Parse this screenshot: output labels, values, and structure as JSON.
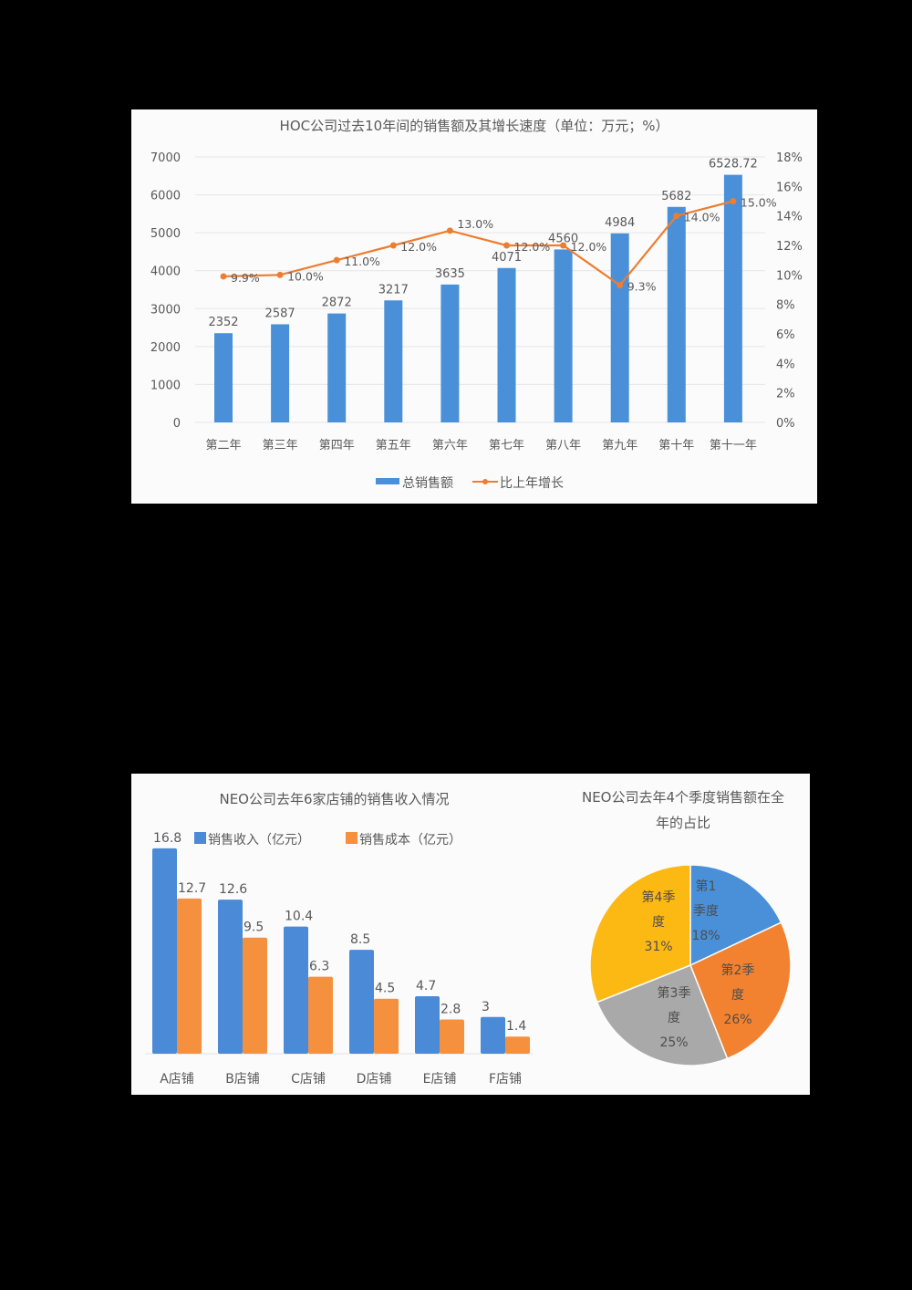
{
  "chart_data": [
    {
      "type": "bar+line",
      "title": "HOC公司过去10年间的销售额及其增长速度（单位：万元；%）",
      "categories": [
        "第二年",
        "第三年",
        "第四年",
        "第五年",
        "第六年",
        "第七年",
        "第八年",
        "第九年",
        "第十年",
        "第十一年"
      ],
      "series": [
        {
          "name": "总销售额",
          "type": "bar",
          "axis": "left",
          "color": "#4a90d9",
          "values": [
            2352,
            2587,
            2872,
            3217,
            3635,
            4071,
            4560,
            4984,
            5682,
            6528.72
          ],
          "labels": [
            "2352",
            "2587",
            "2872",
            "3217",
            "3635",
            "4071",
            "4560",
            "4984",
            "5682",
            "6528.72"
          ]
        },
        {
          "name": "比上年增长",
          "type": "line",
          "axis": "right",
          "color": "#ed7d31",
          "values": [
            9.9,
            10.0,
            11.0,
            12.0,
            13.0,
            12.0,
            12.0,
            9.3,
            14.0,
            15.0
          ],
          "labels": [
            "9.9%",
            "10.0%",
            "11.0%",
            "12.0%",
            "13.0%",
            "12.0%",
            "12.0%",
            "9.3%",
            "14.0%",
            "15.0%"
          ]
        }
      ],
      "y_left": {
        "ticks": [
          "0",
          "1000",
          "2000",
          "3000",
          "4000",
          "5000",
          "6000",
          "7000"
        ],
        "ylim": [
          0,
          7000
        ]
      },
      "y_right": {
        "ticks": [
          "0%",
          "2%",
          "4%",
          "6%",
          "8%",
          "10%",
          "12%",
          "14%",
          "16%",
          "18%"
        ],
        "ylim": [
          0,
          18
        ]
      },
      "grid": true,
      "legend_position": "bottom",
      "xlabel": "",
      "ylabel": ""
    },
    {
      "type": "bar",
      "title": "NEO公司去年6家店铺的销售收入情况",
      "categories": [
        "A店铺",
        "B店铺",
        "C店铺",
        "D店铺",
        "E店铺",
        "F店铺"
      ],
      "series": [
        {
          "name": "销售收入（亿元）",
          "color": "#4a8ad6",
          "values": [
            16.8,
            12.6,
            10.4,
            8.5,
            4.7,
            3
          ],
          "labels": [
            "16.8",
            "12.6",
            "10.4",
            "8.5",
            "4.7",
            "3"
          ]
        },
        {
          "name": "销售成本（亿元）",
          "color": "#f5913e",
          "values": [
            12.7,
            9.5,
            6.3,
            4.5,
            2.8,
            1.4
          ],
          "labels": [
            "12.7",
            "9.5",
            "6.3",
            "4.5",
            "2.8",
            "1.4"
          ]
        }
      ],
      "legend_position": "top",
      "grid": false,
      "xlabel": "",
      "ylabel": ""
    },
    {
      "type": "pie",
      "title": "NEO公司去年4个季度销售额在全年的占比",
      "title_lines": [
        "NEO公司去年4个季度销售额在全",
        "年的占比"
      ],
      "slices": [
        {
          "label": "第1季度",
          "label_lines": [
            "第1",
            "季度",
            "18%"
          ],
          "value": 18,
          "color": "#4a90d9"
        },
        {
          "label": "第2季度",
          "label_lines": [
            "第2季",
            "度",
            "26%"
          ],
          "value": 26,
          "color": "#f28230"
        },
        {
          "label": "第3季度",
          "label_lines": [
            "第3季",
            "度",
            "25%"
          ],
          "value": 25,
          "color": "#a9a9a9"
        },
        {
          "label": "第4季度",
          "label_lines": [
            "第4季",
            "度",
            "31%"
          ],
          "value": 31,
          "color": "#fdb913"
        }
      ]
    }
  ],
  "colors": {
    "bar_blue": "#4a90d9",
    "line_orange": "#ed7d31",
    "cost_orange": "#f5913e",
    "grid": "#e6e6e6",
    "axis_text": "#595959",
    "page_bg": "#000000",
    "panel_bg": "#fbfbfb"
  }
}
